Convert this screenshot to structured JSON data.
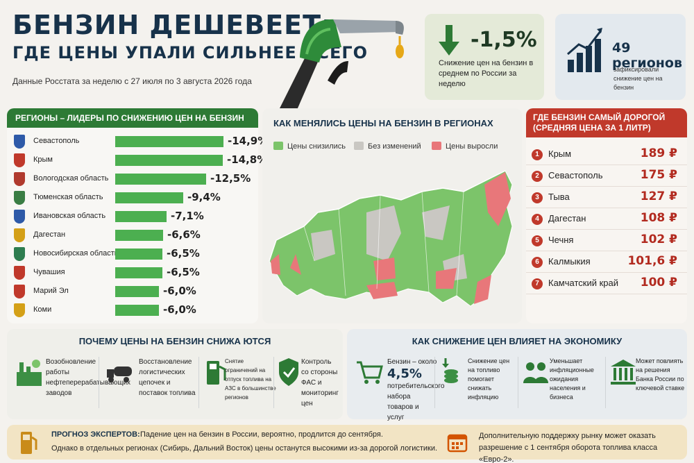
{
  "header": {
    "title_line1": "БЕНЗИН ДЕШЕВЕЕТ:",
    "title_line2": "ГДЕ ЦЕНЫ УПАЛИ СИЛЬНЕЕ ВСЕГО",
    "source": "Данные Росстата за неделю с 27 июля по 3 августа 2026 года"
  },
  "stats": {
    "drop_value": "-1,5%",
    "drop_desc": "Снижение цен на бензин в среднем по России за неделю",
    "regions_value": "49 регионов",
    "regions_desc": "зафиксировали снижение цен на бензин"
  },
  "leaders": {
    "title": "РЕГИОНЫ – ЛИДЕРЫ ПО СНИЖЕНИЮ ЦЕН НА БЕНЗИН",
    "items": [
      {
        "name": "Севастополь",
        "value": "-14,9%",
        "percent": 14.9,
        "color": "#2e5aa8"
      },
      {
        "name": "Крым",
        "value": "-14,8%",
        "percent": 14.8,
        "color": "#c0392b"
      },
      {
        "name": "Вологодская область",
        "value": "-12,5%",
        "percent": 12.5,
        "color": "#b03a2e"
      },
      {
        "name": "Тюменская область",
        "value": "-9,4%",
        "percent": 9.4,
        "color": "#3a7d44"
      },
      {
        "name": "Ивановская область",
        "value": "-7,1%",
        "percent": 7.1,
        "color": "#2e5aa8"
      },
      {
        "name": "Дагестан",
        "value": "-6,6%",
        "percent": 6.6,
        "color": "#d4a017"
      },
      {
        "name": "Новосибирская область",
        "value": "-6,5%",
        "percent": 6.5,
        "color": "#2e7d4f"
      },
      {
        "name": "Чувашия",
        "value": "-6,5%",
        "percent": 6.5,
        "color": "#c0392b"
      },
      {
        "name": "Марий Эл",
        "value": "-6,0%",
        "percent": 6.0,
        "color": "#c0392b"
      },
      {
        "name": "Коми",
        "value": "-6,0%",
        "percent": 6.0,
        "color": "#d4a017"
      }
    ]
  },
  "map": {
    "title": "КАК МЕНЯЛИСЬ ЦЕНЫ НА БЕНЗИН В РЕГИОНАХ",
    "legend": [
      {
        "label": "Цены снизились",
        "color": "#7cc46a"
      },
      {
        "label": "Без изменений",
        "color": "#c9c7c2"
      },
      {
        "label": "Цены выросли",
        "color": "#e8777a"
      }
    ]
  },
  "expensive": {
    "title": "ГДЕ БЕНЗИН САМЫЙ ДОРОГОЙ (СРЕДНЯЯ ЦЕНА ЗА 1 ЛИТР)",
    "items": [
      {
        "rank": "1",
        "name": "Крым",
        "price": "189 ₽"
      },
      {
        "rank": "2",
        "name": "Севастополь",
        "price": "175 ₽"
      },
      {
        "rank": "3",
        "name": "Тыва",
        "price": "127 ₽"
      },
      {
        "rank": "4",
        "name": "Дагестан",
        "price": "108 ₽"
      },
      {
        "rank": "5",
        "name": "Чечня",
        "price": "102 ₽"
      },
      {
        "rank": "6",
        "name": "Калмыкия",
        "price": "101,6 ₽"
      },
      {
        "rank": "7",
        "name": "Камчатский край",
        "price": "100 ₽"
      }
    ]
  },
  "why": {
    "title": "ПОЧЕМУ ЦЕНЫ НА БЕНЗИН СНИЖА ЮТСЯ",
    "items": [
      {
        "text": "Возобновление работы нефтеперерабатывающих заводов",
        "icon": "refinery-icon"
      },
      {
        "text": "Восстановление логистических цепочек и поставок топлива",
        "icon": "tanker-truck-icon"
      },
      {
        "text": "Снятие ограничений на отпуск топлива на АЗС в большинстве регионов",
        "icon": "fuel-pump-icon"
      },
      {
        "text": "Контроль со стороны ФАС и мониторинг цен",
        "icon": "shield-check-icon"
      }
    ]
  },
  "economy": {
    "title": "КАК СНИЖЕНИЕ ЦЕН ВЛИЯЕТ НА ЭКОНОМИКУ",
    "items": [
      {
        "pre": "Бензин – около",
        "big": "4,5%",
        "text": "потребительского набора товаров и услуг",
        "icon": "shopping-cart-icon"
      },
      {
        "pre": "",
        "big": "",
        "text": "Снижение цен на топливо помогает снижать инфляцию",
        "icon": "coins-down-icon"
      },
      {
        "pre": "",
        "big": "",
        "text": "Уменьшает инфляционные ожидания населения и бизнеса",
        "icon": "people-icon"
      },
      {
        "pre": "",
        "big": "",
        "text": "Может повлиять на решения Банка России по ключевой ставке",
        "icon": "bank-icon"
      }
    ]
  },
  "forecast": {
    "label": "ПРОГНОЗ ЭКСПЕРТОВ:",
    "line1": "Падение цен на бензин в России, вероятно, продлится до сентября.",
    "line2": "Однако в отдельных регионах (Сибирь, Дальний Восток) цены останутся высокими из-за дорогой логистики.",
    "note": "Дополнительную поддержку рынку может оказать разрешение с 1 сентября оборота топлива класса «Евро-2»."
  }
}
